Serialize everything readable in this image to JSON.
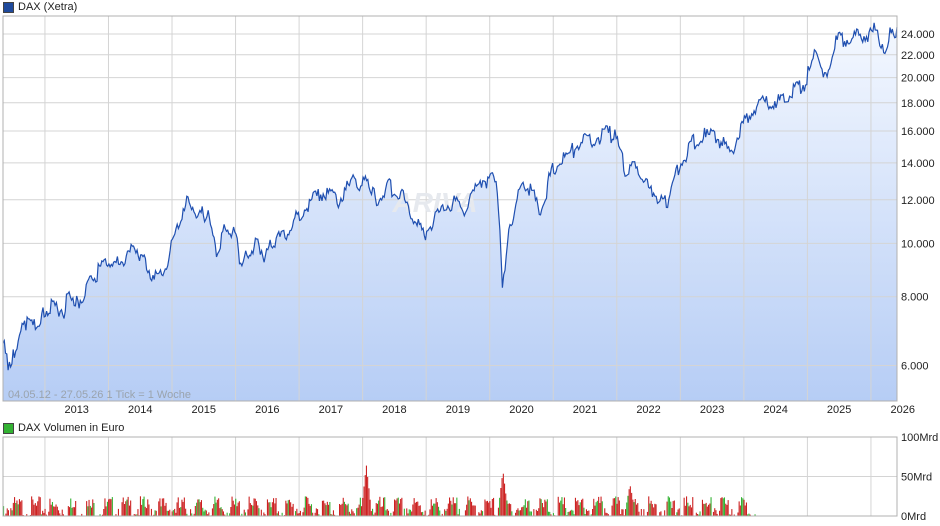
{
  "price_legend": {
    "label": "DAX (Xetra)",
    "color": "#1f4a9c"
  },
  "volume_legend": {
    "label": "DAX Volumen in Euro",
    "color": "#33b233"
  },
  "info_text": "04.05.12 - 27.05.26   1 Tick = 1 Woche",
  "watermark": "ARIVA",
  "chart_data": [
    {
      "type": "area",
      "series_name": "DAX (Xetra)",
      "yscale": "log",
      "ylim": [
        5500,
        25500
      ],
      "yticks": [
        6000,
        8000,
        10000,
        12000,
        14000,
        16000,
        18000,
        20000,
        22000,
        24000
      ],
      "ytick_labels": [
        "6.000",
        "8.000",
        "10.000",
        "12.000",
        "14.000",
        "16.000",
        "18.000",
        "20.000",
        "22.000",
        "24.000"
      ],
      "xlim": [
        2012.34,
        2026.41
      ],
      "xticks": [
        2013,
        2014,
        2015,
        2016,
        2017,
        2018,
        2019,
        2020,
        2021,
        2022,
        2023,
        2024,
        2025,
        2026
      ],
      "xtick_labels": [
        "2013",
        "2014",
        "2015",
        "2016",
        "2017",
        "2018",
        "2019",
        "2020",
        "2021",
        "2022",
        "2023",
        "2024",
        "2025",
        "2026"
      ],
      "grid": true,
      "points": [
        [
          2012.34,
          6700
        ],
        [
          2012.42,
          6150
        ],
        [
          2012.5,
          6400
        ],
        [
          2012.6,
          6900
        ],
        [
          2012.7,
          7300
        ],
        [
          2012.85,
          7200
        ],
        [
          2012.97,
          7600
        ],
        [
          2013.1,
          7800
        ],
        [
          2013.3,
          7700
        ],
        [
          2013.4,
          8350
        ],
        [
          2013.5,
          7900
        ],
        [
          2013.65,
          8400
        ],
        [
          2013.8,
          8900
        ],
        [
          2013.97,
          9500
        ],
        [
          2014.1,
          9300
        ],
        [
          2014.3,
          9700
        ],
        [
          2014.45,
          9950
        ],
        [
          2014.6,
          9200
        ],
        [
          2014.78,
          8700
        ],
        [
          2014.97,
          9800
        ],
        [
          2015.1,
          10900
        ],
        [
          2015.27,
          12300
        ],
        [
          2015.42,
          11400
        ],
        [
          2015.55,
          11600
        ],
        [
          2015.7,
          9800
        ],
        [
          2015.82,
          10850
        ],
        [
          2015.97,
          10700
        ],
        [
          2016.1,
          9300
        ],
        [
          2016.2,
          9700
        ],
        [
          2016.35,
          10200
        ],
        [
          2016.47,
          9600
        ],
        [
          2016.6,
          10300
        ],
        [
          2016.8,
          10600
        ],
        [
          2016.97,
          11400
        ],
        [
          2017.2,
          12200
        ],
        [
          2017.4,
          12700
        ],
        [
          2017.6,
          12100
        ],
        [
          2017.85,
          13200
        ],
        [
          2017.97,
          12900
        ],
        [
          2018.1,
          13300
        ],
        [
          2018.22,
          12000
        ],
        [
          2018.4,
          12900
        ],
        [
          2018.6,
          12600
        ],
        [
          2018.8,
          11300
        ],
        [
          2018.97,
          10600
        ],
        [
          2019.2,
          11500
        ],
        [
          2019.4,
          12100
        ],
        [
          2019.6,
          11700
        ],
        [
          2019.85,
          13200
        ],
        [
          2019.97,
          13300
        ],
        [
          2020.1,
          13600
        ],
        [
          2020.2,
          8700
        ],
        [
          2020.3,
          10600
        ],
        [
          2020.45,
          12700
        ],
        [
          2020.6,
          13000
        ],
        [
          2020.8,
          11600
        ],
        [
          2020.97,
          13700
        ],
        [
          2021.2,
          14600
        ],
        [
          2021.4,
          15400
        ],
        [
          2021.65,
          15800
        ],
        [
          2021.85,
          16200
        ],
        [
          2021.97,
          15900
        ],
        [
          2022.15,
          13600
        ],
        [
          2022.3,
          14200
        ],
        [
          2022.5,
          12800
        ],
        [
          2022.7,
          12200
        ],
        [
          2022.78,
          12000
        ],
        [
          2022.97,
          13900
        ],
        [
          2023.15,
          15300
        ],
        [
          2023.4,
          16100
        ],
        [
          2023.6,
          15800
        ],
        [
          2023.8,
          14800
        ],
        [
          2023.97,
          16700
        ],
        [
          2024.2,
          18100
        ],
        [
          2024.45,
          18500
        ],
        [
          2024.6,
          18300
        ],
        [
          2024.8,
          19300
        ],
        [
          2024.97,
          20000
        ],
        [
          2025.15,
          23000
        ],
        [
          2025.27,
          20300
        ],
        [
          2025.45,
          23700
        ],
        [
          2025.7,
          24100
        ],
        [
          2025.85,
          24300
        ],
        [
          2025.97,
          24300
        ],
        [
          2026.05,
          24900
        ],
        [
          2026.12,
          24000
        ],
        [
          2026.2,
          22700
        ],
        [
          2026.3,
          24300
        ],
        [
          2026.41,
          24700
        ]
      ]
    },
    {
      "type": "bar",
      "series_name": "DAX Volumen in Euro",
      "ylim": [
        0,
        100
      ],
      "yticks": [
        0,
        50,
        100
      ],
      "ytick_labels": [
        "0Mrd",
        "50Mrd",
        "100Mrd"
      ],
      "xlim": [
        2012.34,
        2026.41
      ],
      "bar_interval": "1 week",
      "up_color": "#33b233",
      "down_color": "#cc2222",
      "volume_end": 2024.2,
      "typical_volume_mrd": [
        10,
        25
      ],
      "peaks": [
        [
          2018.05,
          60
        ],
        [
          2020.2,
          52
        ],
        [
          2022.2,
          35
        ]
      ]
    }
  ]
}
